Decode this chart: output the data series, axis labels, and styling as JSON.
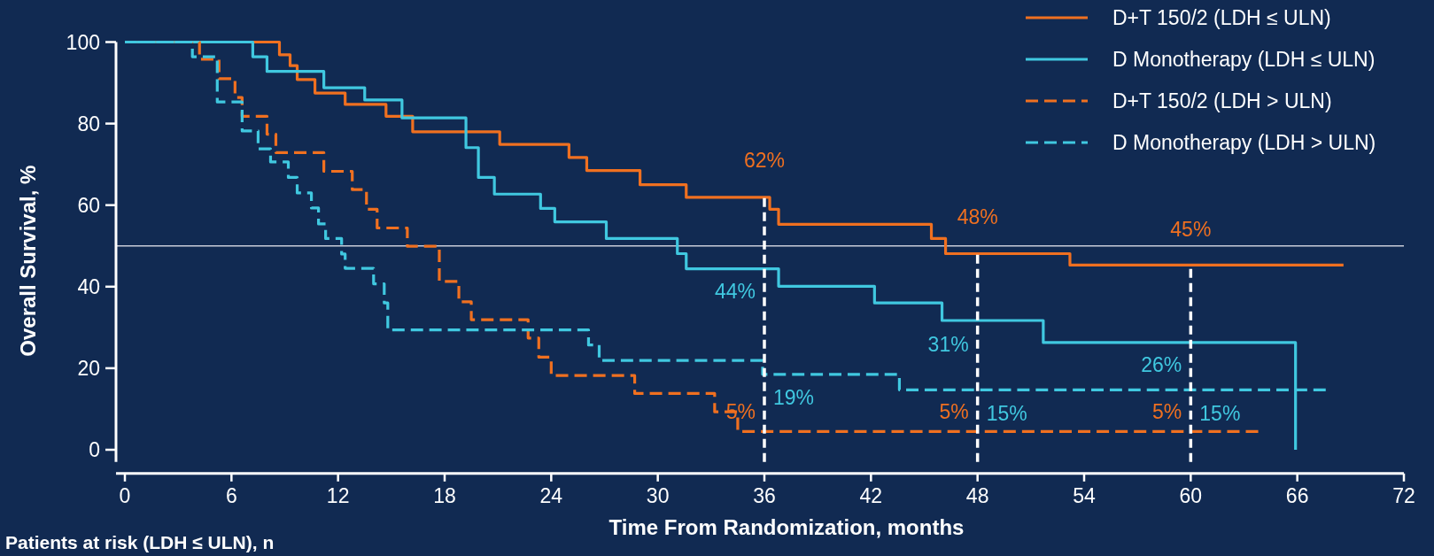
{
  "chart_data": {
    "type": "step",
    "xlabel": "Time From Randomization, months",
    "ylabel": "Overall Survival, %",
    "xlim": [
      -0.5,
      72
    ],
    "ylim": [
      -3,
      100
    ],
    "xticks": [
      0,
      6,
      12,
      18,
      24,
      30,
      36,
      42,
      48,
      54,
      60,
      66,
      72
    ],
    "yticks": [
      0,
      20,
      40,
      60,
      80,
      100
    ],
    "legend": "top right",
    "grid": false,
    "series": [
      {
        "name": "D+T 150/2 (LDH ≤ ULN)",
        "color": "#f07020",
        "line_style": "solid",
        "x": [
          0,
          8.7,
          9.3,
          9.7,
          10.7,
          12.4,
          14.7,
          16.2,
          21.1,
          25.0,
          26.0,
          29.0,
          31.6,
          36.3,
          36.8,
          45.4,
          46.2,
          53.2,
          68.6
        ],
        "values": [
          100,
          96.9,
          94.2,
          90.8,
          87.5,
          84.7,
          81.8,
          78.0,
          74.9,
          71.7,
          68.5,
          65.0,
          61.9,
          59.0,
          55.3,
          51.8,
          48.1,
          45.3,
          45.3
        ]
      },
      {
        "name": "D Monotherapy (LDH ≤ ULN)",
        "color": "#40c8e0",
        "line_style": "solid",
        "x": [
          0,
          7.2,
          8.0,
          11.2,
          13.5,
          15.6,
          19.2,
          19.9,
          20.8,
          23.4,
          24.2,
          27.1,
          31.1,
          31.6,
          36.8,
          42.2,
          46.0,
          51.7,
          65.9
        ],
        "values": [
          100,
          96.4,
          92.8,
          88.8,
          85.8,
          81.4,
          74.1,
          66.8,
          62.7,
          59.2,
          55.9,
          51.8,
          48.1,
          44.4,
          40.1,
          36.0,
          31.7,
          26.3,
          0
        ]
      },
      {
        "name": "D+T 150/2 (LDH > ULN)",
        "color": "#f07020",
        "line_style": "dashed",
        "x": [
          0,
          4.2,
          5.3,
          6.2,
          6.6,
          8.0,
          8.5,
          11.2,
          12.8,
          13.6,
          14.2,
          15.9,
          17.7,
          18.8,
          19.5,
          22.7,
          23.3,
          24.0,
          28.7,
          33.2,
          34.5,
          63.8
        ],
        "values": [
          100,
          95.8,
          91.0,
          86.4,
          81.8,
          77.4,
          72.9,
          68.3,
          63.8,
          59.0,
          54.4,
          49.9,
          41.3,
          36.3,
          31.9,
          27.4,
          22.7,
          18.2,
          13.8,
          9.3,
          4.5,
          4.5
        ]
      },
      {
        "name": "D Monotherapy (LDH > ULN)",
        "color": "#40c8e0",
        "line_style": "dashed",
        "x": [
          0,
          3.8,
          5.2,
          6.6,
          7.5,
          8.2,
          9.2,
          9.7,
          10.5,
          10.9,
          11.3,
          12.2,
          12.4,
          14.0,
          14.6,
          14.8,
          26.1,
          26.7,
          35.9,
          43.6,
          67.6
        ],
        "values": [
          100,
          96.4,
          85.3,
          78.2,
          73.8,
          70.6,
          66.8,
          63.0,
          59.3,
          55.4,
          51.8,
          48.0,
          44.5,
          40.7,
          36.0,
          29.4,
          25.7,
          21.9,
          18.5,
          14.7,
          14.7
        ]
      }
    ],
    "ref_lines": [
      {
        "axis": "y",
        "value": 50,
        "color": "#c8ccd8",
        "line_style": "solid"
      },
      {
        "axis": "x",
        "value": 36,
        "color": "#ffffff",
        "line_style": "dashed"
      },
      {
        "axis": "x",
        "value": 48,
        "color": "#ffffff",
        "line_style": "dashed"
      },
      {
        "axis": "x",
        "value": 60,
        "color": "#ffffff",
        "line_style": "dashed"
      }
    ],
    "annotations": [
      {
        "text": "62%",
        "x": 36,
        "y": 62
      },
      {
        "text": "48%",
        "x": 48,
        "y": 48
      },
      {
        "text": "45%",
        "x": 60,
        "y": 45
      },
      {
        "text": "44%",
        "x": 36,
        "y": 44
      },
      {
        "text": "31%",
        "x": 48,
        "y": 31
      },
      {
        "text": "26%",
        "x": 60,
        "y": 26
      },
      {
        "text": "19%",
        "x": 36,
        "y": 19
      },
      {
        "text": "15%",
        "x": 48,
        "y": 15
      },
      {
        "text": "15%",
        "x": 60,
        "y": 15
      },
      {
        "text": "5%",
        "x": 36,
        "y": 5
      },
      {
        "text": "5%",
        "x": 48,
        "y": 5
      },
      {
        "text": "5%",
        "x": 60,
        "y": 5
      },
      "Patients at risk (LDH ≤ ULN), n"
    ]
  }
}
